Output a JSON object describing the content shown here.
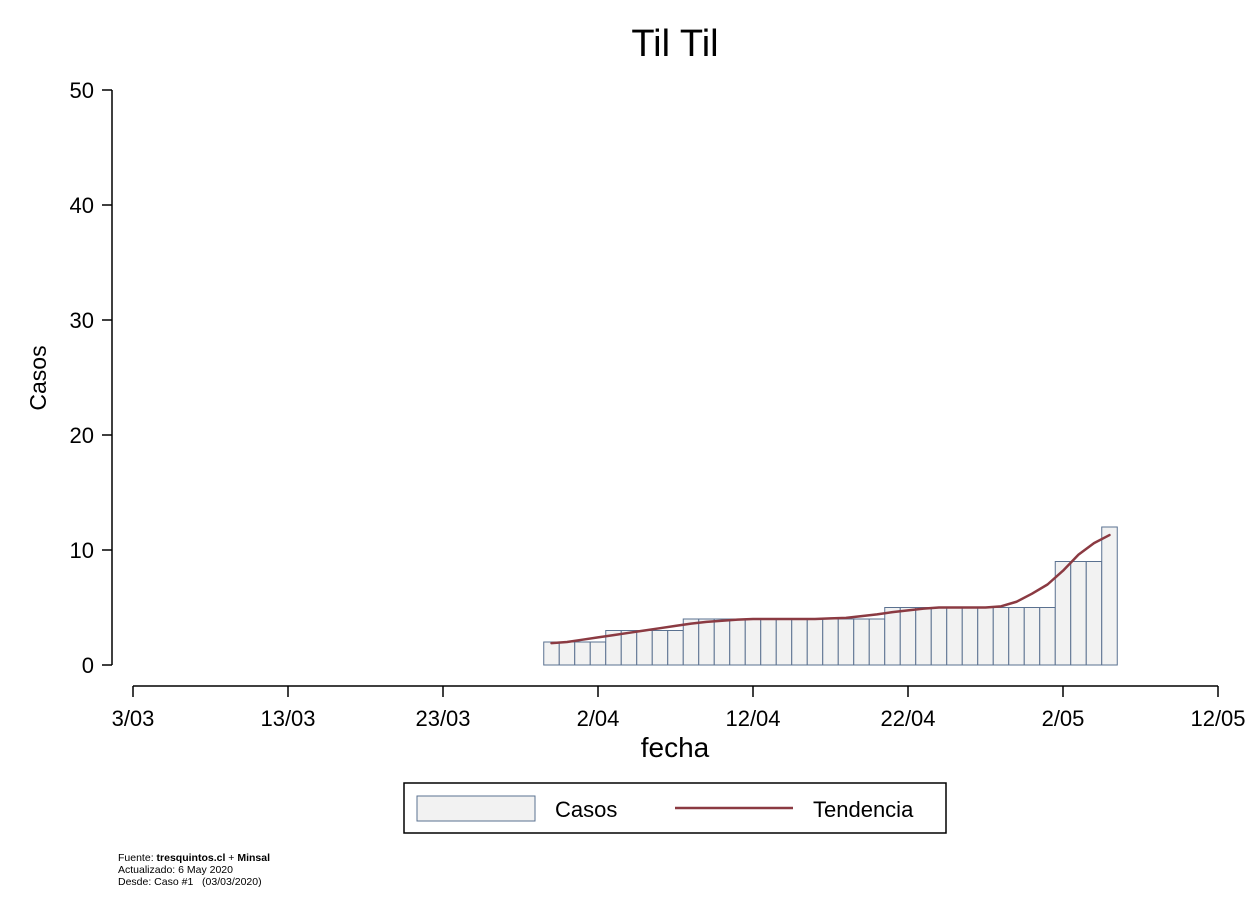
{
  "chart_data": {
    "type": "bar",
    "title": "Til Til",
    "xlabel": "fecha",
    "ylabel": "Casos",
    "ylim": [
      0,
      50
    ],
    "yticks": [
      0,
      10,
      20,
      30,
      40,
      50
    ],
    "xticks": [
      "3/03",
      "13/03",
      "23/03",
      "2/04",
      "12/04",
      "22/04",
      "2/05",
      "12/05"
    ],
    "x_start": "3/03",
    "x_end": "12/05",
    "bar_start": "30/03",
    "series": [
      {
        "name": "Casos",
        "kind": "bar",
        "color": "#f2f2f2",
        "edge_color": "#5a7190",
        "values": [
          2,
          2,
          2,
          2,
          3,
          3,
          3,
          3,
          3,
          4,
          4,
          4,
          4,
          4,
          4,
          4,
          4,
          4,
          4,
          4,
          4,
          4,
          5,
          5,
          5,
          5,
          5,
          5,
          5,
          5,
          5,
          5,
          5,
          9,
          9,
          9,
          12
        ]
      },
      {
        "name": "Tendencia",
        "kind": "line",
        "color": "#8b3a42",
        "values": [
          1.9,
          2.0,
          2.2,
          2.4,
          2.6,
          2.8,
          3.0,
          3.2,
          3.4,
          3.6,
          3.75,
          3.85,
          3.95,
          4.0,
          4.0,
          4.0,
          4.0,
          4.0,
          4.05,
          4.1,
          4.25,
          4.4,
          4.6,
          4.75,
          4.9,
          5.0,
          5.0,
          5.0,
          5.0,
          5.1,
          5.5,
          6.2,
          7.0,
          8.2,
          9.6,
          10.6,
          11.3
        ]
      }
    ],
    "legend": {
      "position": "bottom",
      "entries": [
        "Casos",
        "Tendencia"
      ]
    }
  },
  "footer": {
    "fuente_label": "Fuente: ",
    "fuente_source1": "tresquintos.cl",
    "fuente_plus": " + ",
    "fuente_source2": "Minsal",
    "actualizado": "Actualizado: 6 May 2020",
    "desde": "Desde: Caso #1   (03/03/2020)"
  }
}
